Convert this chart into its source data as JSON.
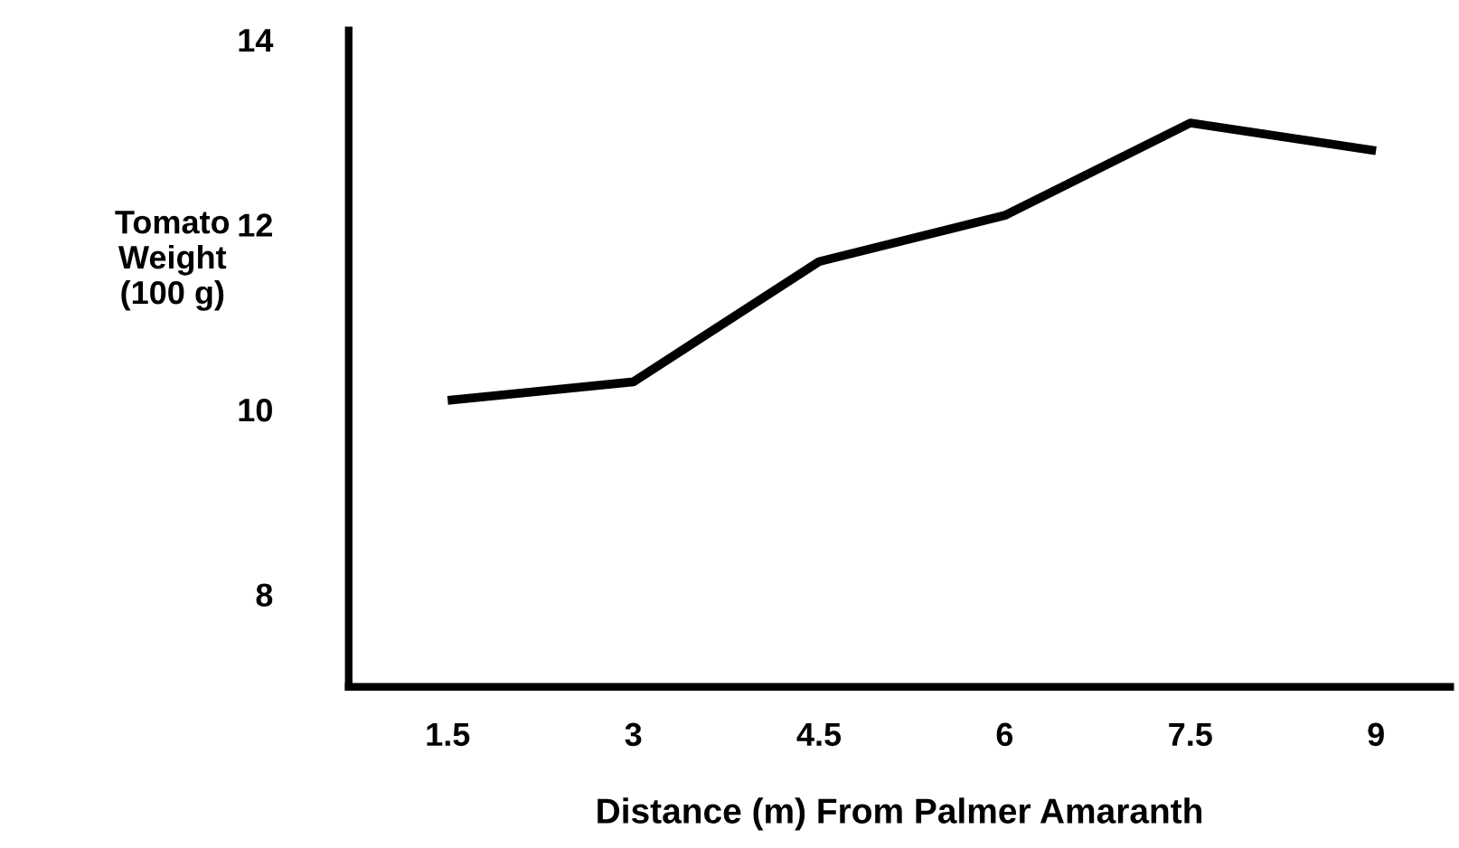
{
  "chart_data": {
    "type": "line",
    "xlabel": "Distance (m) From Palmer Amaranth",
    "ylabel": "Tomato\nWeight\n(100 g)",
    "x": [
      1.5,
      3,
      4.5,
      6,
      7.5,
      9
    ],
    "series": [
      {
        "color": "#000000",
        "values": [
          10.1,
          10.3,
          11.6,
          12.1,
          13.1,
          12.8
        ]
      }
    ],
    "xlim": [
      0.7,
      9.6
    ],
    "xticks": [
      1.5,
      3,
      4.5,
      6,
      7.5,
      9
    ],
    "ylim": [
      7,
      14.1
    ],
    "yticks": [
      8,
      10,
      12,
      14
    ],
    "grid": false,
    "legend": false,
    "marker": "none",
    "line_style": "solid"
  }
}
